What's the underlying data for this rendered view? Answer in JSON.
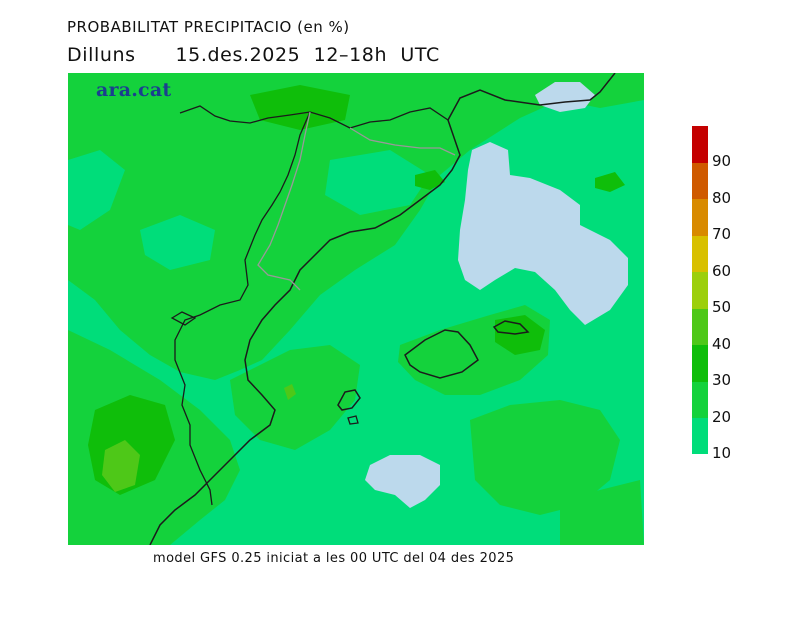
{
  "header": {
    "title": "PROBABILITAT PRECIPITACIO (en %)",
    "subtitle": "Dilluns      15.des.2025  12–18h  UTC"
  },
  "brand": "ara.cat",
  "footer": "model GFS 0.25 iniciat a les 00 UTC del 04 des 2025",
  "colors": {
    "c10": "#00dd7a",
    "c20": "#14d23c",
    "c30": "#0fbe0a",
    "c40": "#4ec818",
    "c50": "#9ccf0c",
    "c60": "#d8c000",
    "c70": "#d88a00",
    "c80": "#cf5a00",
    "c90": "#c40000",
    "low": "#bcd9ec",
    "coast": "#1b1b1b",
    "border": "#999999"
  },
  "legend": {
    "bins": [
      {
        "from": 10,
        "to": 20,
        "color": "#00dd7a"
      },
      {
        "from": 20,
        "to": 30,
        "color": "#14d23c"
      },
      {
        "from": 30,
        "to": 40,
        "color": "#0fbe0a"
      },
      {
        "from": 40,
        "to": 50,
        "color": "#4ec818"
      },
      {
        "from": 50,
        "to": 60,
        "color": "#9ccf0c"
      },
      {
        "from": 60,
        "to": 70,
        "color": "#d8c000"
      },
      {
        "from": 70,
        "to": 80,
        "color": "#d88a00"
      },
      {
        "from": 80,
        "to": 90,
        "color": "#cf5a00"
      },
      {
        "from": 90,
        "to": 100,
        "color": "#c40000"
      }
    ],
    "ticks": [
      "10",
      "20",
      "30",
      "40",
      "50",
      "60",
      "70",
      "80",
      "90"
    ]
  }
}
